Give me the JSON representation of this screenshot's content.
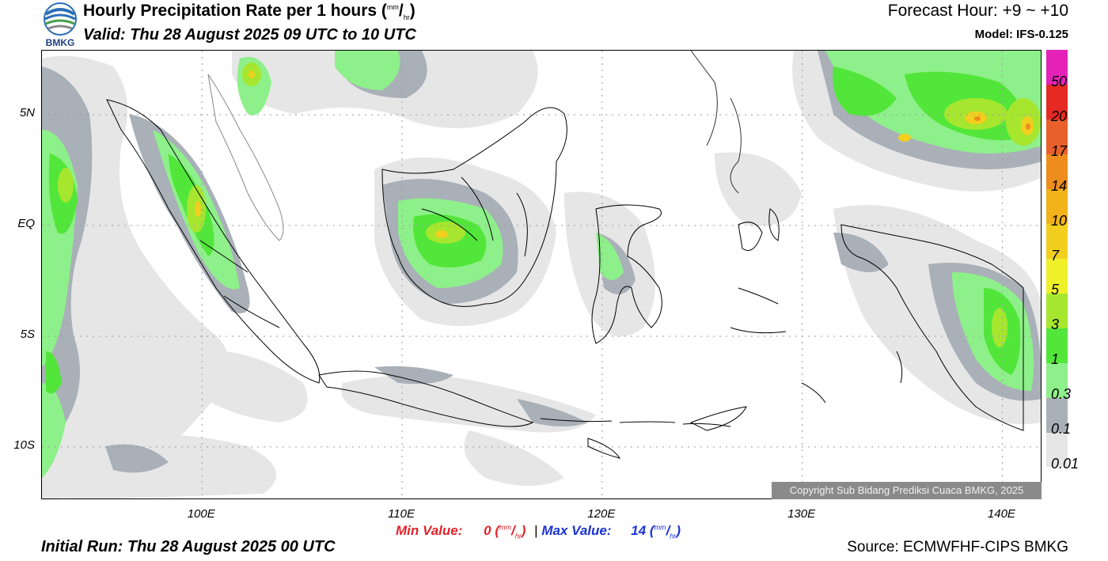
{
  "header": {
    "title_main": "Hourly Precipitation Rate per 1 hours (",
    "title_unit_top": "mm",
    "title_unit_slash": "/",
    "title_unit_bottom": "hr",
    "title_close": ")",
    "valid": "Valid: Thu 28 August 2025 09 UTC to 10 UTC",
    "forecast_hour": "Forecast Hour: +9 ~ +10",
    "model": "Model: IFS-0.125",
    "logo_text": "BMKG"
  },
  "map": {
    "lat_labels": [
      "5N",
      "EQ",
      "5S",
      "10S"
    ],
    "lon_labels": [
      "100E",
      "110E",
      "120E",
      "130E",
      "140E"
    ],
    "gridlines": true,
    "lon_range": [
      92,
      142
    ],
    "lat_range": [
      -12.4,
      7.9
    ],
    "copyright": "Copyright Sub Bidang Prediksi Cuaca BMKG, 2025"
  },
  "stats": {
    "min_label": "Min Value:",
    "min_value": "0",
    "max_label": "Max Value:",
    "max_value": "14",
    "unit_top": "mm",
    "unit_slash": "/",
    "unit_bottom": "hr",
    "separator": "|"
  },
  "footer": {
    "initial_run": "Initial Run: Thu 28 August 2025 00 UTC",
    "source": "Source: ECMWFHF-CIPS BMKG"
  },
  "colorbar": {
    "colors": [
      "#e6e6e6",
      "#a9b0b8",
      "#8ef08a",
      "#52e63a",
      "#a6e62e",
      "#f0f02a",
      "#f2cf1e",
      "#f2b21a",
      "#ee8c1e",
      "#e8602a",
      "#e42a22",
      "#e422b8"
    ],
    "labels": [
      "0.01",
      "0.1",
      "0.3",
      "1",
      "3",
      "5",
      "7",
      "10",
      "14",
      "17",
      "20",
      "50"
    ]
  }
}
